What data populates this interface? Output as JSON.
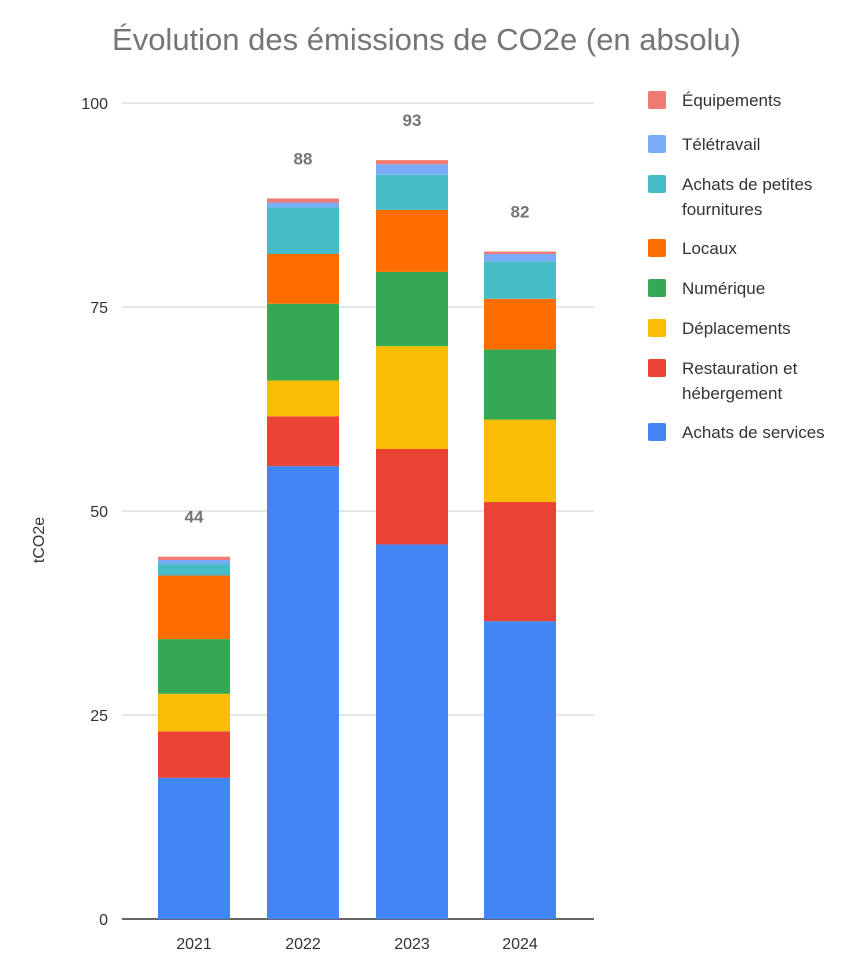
{
  "chart_data": {
    "type": "bar",
    "stacked": true,
    "title": "Évolution des émissions de CO2e (en absolu)",
    "xlabel": "",
    "ylabel": "tCO2e",
    "ylim": [
      0,
      100
    ],
    "yticks": [
      "0",
      "25",
      "50",
      "75",
      "100"
    ],
    "categories": [
      "2021",
      "2022",
      "2023",
      "2024"
    ],
    "totals": [
      "44",
      "88",
      "93",
      "82"
    ],
    "series": [
      {
        "name": "Achats de services",
        "color": "#4285f4",
        "values": [
          17.3,
          55.5,
          45.9,
          36.5
        ]
      },
      {
        "name": "Restauration et hébergement",
        "color": "#ea4335",
        "values": [
          5.7,
          6.1,
          11.7,
          14.6
        ]
      },
      {
        "name": "Déplacements",
        "color": "#fbbc04",
        "values": [
          4.6,
          4.4,
          12.6,
          10.1
        ]
      },
      {
        "name": "Numérique",
        "color": "#34a853",
        "values": [
          6.7,
          9.4,
          9.1,
          8.6
        ]
      },
      {
        "name": "Locaux",
        "color": "#ff6d01",
        "values": [
          7.8,
          6.1,
          7.6,
          6.2
        ]
      },
      {
        "name": "Achats de petites fournitures",
        "color": "#46bdc6",
        "values": [
          1.4,
          5.7,
          4.3,
          4.6
        ]
      },
      {
        "name": "Télétravail",
        "color": "#7baaf7",
        "values": [
          0.5,
          0.6,
          1.3,
          0.9
        ]
      },
      {
        "name": "Équipements",
        "color": "#f07b72",
        "values": [
          0.4,
          0.5,
          0.5,
          0.3
        ]
      }
    ],
    "legend_position": "right",
    "grid": true
  }
}
